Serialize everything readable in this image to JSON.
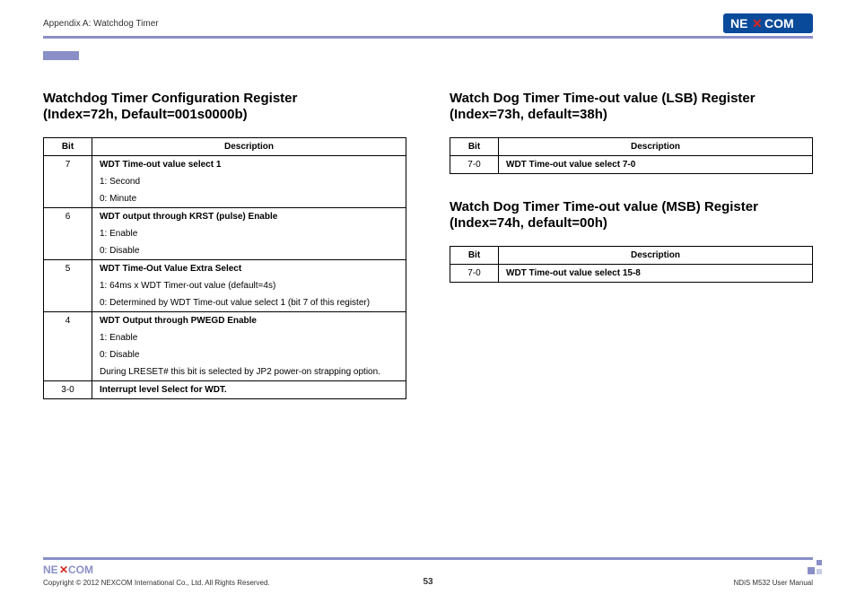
{
  "header": {
    "appendix": "Appendix A: Watchdog Timer",
    "brand_text": "NEXCOM",
    "brand_bg": "#0a4a9a",
    "brand_fg": "#ffffff",
    "brand_x": "#d7261e"
  },
  "left": {
    "title_l1": "Watchdog Timer Configuration Register",
    "title_l2": "(Index=72h, Default=001s0000b)",
    "cols": {
      "bit": "Bit",
      "desc": "Description"
    },
    "rows": [
      {
        "bit": "7",
        "lines": [
          {
            "t": "WDT Time-out value select 1",
            "b": true
          },
          {
            "t": "1: Second"
          },
          {
            "t": "0: Minute"
          }
        ]
      },
      {
        "bit": "6",
        "lines": [
          {
            "t": "WDT output through KRST (pulse) Enable",
            "b": true
          },
          {
            "t": "1: Enable"
          },
          {
            "t": "0: Disable"
          }
        ]
      },
      {
        "bit": "5",
        "lines": [
          {
            "t": "WDT Time-Out Value Extra Select",
            "b": true
          },
          {
            "t": "1: 64ms x WDT Timer-out value (default=4s)"
          },
          {
            "t": "0: Determined by WDT Time-out value select 1 (bit 7 of this register)"
          }
        ]
      },
      {
        "bit": "4",
        "lines": [
          {
            "t": "WDT Output through PWEGD Enable",
            "b": true
          },
          {
            "t": "1: Enable"
          },
          {
            "t": "0: Disable"
          },
          {
            "t": "During LRESET# this bit is selected by JP2 power-on strapping option."
          }
        ]
      },
      {
        "bit": "3-0",
        "lines": [
          {
            "t": "Interrupt level Select for WDT.",
            "b": true
          }
        ]
      }
    ]
  },
  "right_a": {
    "title_l1": "Watch Dog Timer Time-out value (LSB) Register",
    "title_l2": "(Index=73h, default=38h)",
    "cols": {
      "bit": "Bit",
      "desc": "Description"
    },
    "row_bit": "7-0",
    "row_desc": "WDT Time-out value select 7-0"
  },
  "right_b": {
    "title_l1": "Watch Dog Timer Time-out value (MSB) Register",
    "title_l2": "(Index=74h, default=00h)",
    "cols": {
      "bit": "Bit",
      "desc": "Description"
    },
    "row_bit": "7-0",
    "row_desc": "WDT Time-out value select 15-8"
  },
  "footer": {
    "copyright": "Copyright © 2012 NEXCOM International Co., Ltd. All Rights Reserved.",
    "page": "53",
    "doc": "NDiS M532 User Manual"
  },
  "style": {
    "accent": "#8a8fc7"
  }
}
